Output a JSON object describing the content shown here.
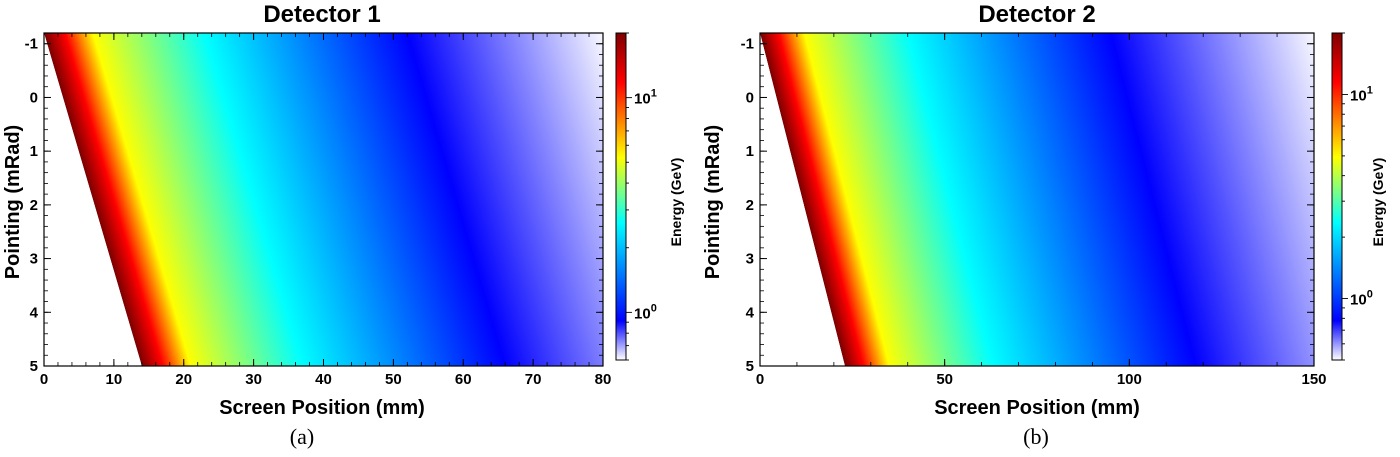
{
  "chart_data": [
    {
      "type": "heatmap",
      "title": "Detector 1",
      "caption": "(a)",
      "xlabel": "Screen Position (mm)",
      "ylabel": "Pointing (mRad)",
      "xlim": [
        0,
        80
      ],
      "ylim": [
        -1.2,
        5
      ],
      "xticks": [
        0,
        10,
        20,
        30,
        40,
        50,
        60,
        70,
        80
      ],
      "yticks": [
        -1,
        0,
        1,
        2,
        3,
        4,
        5
      ],
      "colorbar": {
        "label": "Energy (GeV)",
        "scale": "log",
        "range": [
          0.6,
          20
        ],
        "ticks": [
          {
            "value": 10,
            "base": "10",
            "exp": "1"
          },
          {
            "value": 1,
            "base": "10",
            "exp": "0"
          }
        ],
        "colormap": [
          "#ffffff",
          "#0000ff",
          "#00ffff",
          "#ffff00",
          "#ff0000",
          "#800000"
        ]
      },
      "boundary": {
        "x_at_top": 0,
        "x_at_bottom": 14
      },
      "colormap_stops_x": {
        "max_energy_edge_at_top": 0,
        "red": 3,
        "yellow": 7,
        "cyan": 23,
        "blue": 52,
        "white": 80,
        "shift_at_bottom": 14
      }
    },
    {
      "type": "heatmap",
      "title": "Detector 2",
      "caption": "(b)",
      "xlabel": "Screen Position (mm)",
      "ylabel": "Pointing (mRad)",
      "xlim": [
        0,
        150
      ],
      "ylim": [
        -1.2,
        5
      ],
      "xticks": [
        0,
        50,
        100,
        150
      ],
      "yticks": [
        -1,
        0,
        1,
        2,
        3,
        4,
        5
      ],
      "colorbar": {
        "label": "Energy (GeV)",
        "scale": "log",
        "range": [
          0.5,
          20
        ],
        "ticks": [
          {
            "value": 10,
            "base": "10",
            "exp": "1"
          },
          {
            "value": 1,
            "base": "10",
            "exp": "0"
          }
        ],
        "colormap": [
          "#ffffff",
          "#0000ff",
          "#00ffff",
          "#ffff00",
          "#ff0000",
          "#800000"
        ]
      },
      "boundary": {
        "x_at_top": 0,
        "x_at_bottom": 23
      },
      "colormap_stops_x": {
        "max_energy_edge_at_top": 0,
        "red": 5,
        "yellow": 12,
        "cyan": 40,
        "blue": 95,
        "white": 150,
        "shift_at_bottom": 23
      }
    }
  ]
}
